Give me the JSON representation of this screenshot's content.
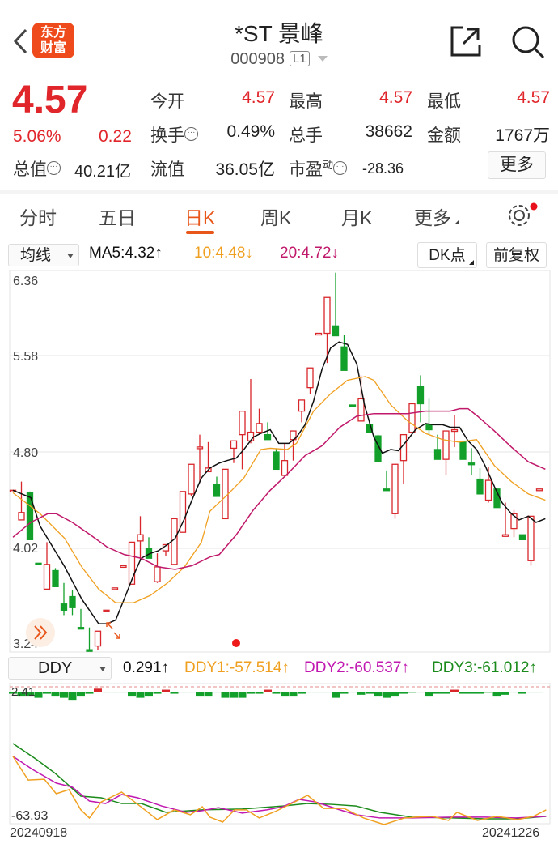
{
  "header": {
    "title": "*ST 景峰",
    "code": "000908",
    "level": "L1",
    "logo_text": [
      "东方",
      "财富"
    ]
  },
  "quote": {
    "price": "4.57",
    "change_pct": "5.06%",
    "change": "0.22",
    "open_label": "今开",
    "open": "4.57",
    "high_label": "最高",
    "high": "4.57",
    "low_label": "最低",
    "low": "4.57",
    "turnover_label": "换手",
    "turnover": "0.49%",
    "volume_label": "总手",
    "volume": "38662",
    "amount_label": "金额",
    "amount": "1767万",
    "mcap_label": "总值",
    "mcap": "40.21亿",
    "float_label": "流值",
    "float_cap": "36.05亿",
    "pe_label": "市盈",
    "pe_sup": "动",
    "pe": "-28.36",
    "more_label": "更多"
  },
  "tabs": [
    {
      "label": "分时"
    },
    {
      "label": "五日"
    },
    {
      "label": "日K",
      "active": true
    },
    {
      "label": "周K"
    },
    {
      "label": "月K"
    },
    {
      "label": "更多"
    }
  ],
  "indicator_bar": {
    "ma_select": "均线",
    "ma5": "MA5:4.32↑",
    "ma10": "10:4.48↓",
    "ma20": "20:4.72↓",
    "dk_label": "DK点",
    "adjust_label": "前复权"
  },
  "ddy_bar": {
    "select": "DDY",
    "ddy": "0.291↑",
    "ddy1": "DDY1:-57.514↑",
    "ddy2": "DDY2:-60.537↑",
    "ddy3": "DDY3:-61.012↑"
  },
  "dates": {
    "start": "20240918",
    "end": "20241226"
  },
  "colors": {
    "up": "#d8262b",
    "down": "#13a02a",
    "ma5": "#111111",
    "ma10": "#f0a020",
    "ma20": "#c0186a",
    "ddy1": "#f0a020",
    "ddy2": "#c018b0",
    "ddy3": "#1a8a1a",
    "accent": "#e8561a"
  },
  "chart_data": [
    {
      "type": "candlestick",
      "title": "日K",
      "y_ticks": [
        "6.36",
        "5.58",
        "4.80",
        "4.02",
        "3.24"
      ],
      "ylim": [
        3.24,
        6.36
      ],
      "candles": [
        [
          4.48,
          4.49,
          4.49,
          4.48
        ],
        [
          4.25,
          4.31,
          4.56,
          4.25
        ],
        [
          4.47,
          4.09,
          4.48,
          4.09
        ],
        [
          3.9,
          3.89,
          3.9,
          3.89
        ],
        [
          3.69,
          3.89,
          4.07,
          3.69
        ],
        [
          3.84,
          3.71,
          3.86,
          3.71
        ],
        [
          3.57,
          3.52,
          3.74,
          3.48
        ],
        [
          3.63,
          3.54,
          3.68,
          3.48
        ],
        [
          3.38,
          3.37,
          3.53,
          3.37
        ],
        [
          3.2,
          3.19,
          3.38,
          3.19
        ],
        [
          3.23,
          3.35,
          3.35,
          3.2
        ],
        [
          3.51,
          3.52,
          3.52,
          3.51
        ],
        [
          3.69,
          3.7,
          3.7,
          3.69
        ],
        [
          3.87,
          3.88,
          3.88,
          3.87
        ],
        [
          3.73,
          4.07,
          4.07,
          3.73
        ],
        [
          4.08,
          4.13,
          4.28,
          3.92
        ],
        [
          4.02,
          3.94,
          4.11,
          3.94
        ],
        [
          3.75,
          3.87,
          3.98,
          3.74
        ],
        [
          4.0,
          4.05,
          4.05,
          3.96
        ],
        [
          3.89,
          4.26,
          4.26,
          3.89
        ],
        [
          4.15,
          4.48,
          4.48,
          4.15
        ],
        [
          4.46,
          4.7,
          4.7,
          4.44
        ],
        [
          4.83,
          4.84,
          4.94,
          4.55
        ],
        [
          4.64,
          4.67,
          4.88,
          4.64
        ],
        [
          4.54,
          4.44,
          4.6,
          4.44
        ],
        [
          4.26,
          4.66,
          4.66,
          4.26
        ],
        [
          4.83,
          4.89,
          4.89,
          4.71
        ],
        [
          4.94,
          5.13,
          5.13,
          4.66
        ],
        [
          4.89,
          4.96,
          5.39,
          4.87
        ],
        [
          4.96,
          5.03,
          5.15,
          4.94
        ],
        [
          4.94,
          4.9,
          5.04,
          4.9
        ],
        [
          4.8,
          4.66,
          4.83,
          4.66
        ],
        [
          4.61,
          4.73,
          4.87,
          4.61
        ],
        [
          4.9,
          4.97,
          4.97,
          4.73
        ],
        [
          5.13,
          5.22,
          5.22,
          5.04
        ],
        [
          5.32,
          5.48,
          5.48,
          5.27
        ],
        [
          5.75,
          5.76,
          5.76,
          5.75
        ],
        [
          5.76,
          6.05,
          6.05,
          5.52
        ],
        [
          5.82,
          5.74,
          6.25,
          5.74
        ],
        [
          5.65,
          5.46,
          5.75,
          5.46
        ],
        [
          5.18,
          5.17,
          5.18,
          5.17
        ],
        [
          5.05,
          5.23,
          5.42,
          5.05
        ],
        [
          5.02,
          4.96,
          5.06,
          4.96
        ],
        [
          4.93,
          4.72,
          4.94,
          4.72
        ],
        [
          4.5,
          4.49,
          4.65,
          4.49
        ],
        [
          4.3,
          4.7,
          4.7,
          4.26
        ],
        [
          4.73,
          4.94,
          4.94,
          4.54
        ],
        [
          4.96,
          5.19,
          5.19,
          5.0
        ],
        [
          5.33,
          5.19,
          5.42,
          5.04
        ],
        [
          5.02,
          4.98,
          5.23,
          4.94
        ],
        [
          4.82,
          4.74,
          4.94,
          4.74
        ],
        [
          4.74,
          4.97,
          4.97,
          4.61
        ],
        [
          4.98,
          4.98,
          5.1,
          4.84
        ],
        [
          4.88,
          4.74,
          4.88,
          4.74
        ],
        [
          4.71,
          4.7,
          4.83,
          4.61
        ],
        [
          4.58,
          4.46,
          4.67,
          4.46
        ],
        [
          4.41,
          4.57,
          4.68,
          4.39
        ],
        [
          4.5,
          4.35,
          4.5,
          4.35
        ],
        [
          4.12,
          4.13,
          4.39,
          4.12
        ],
        [
          4.18,
          4.3,
          4.33,
          4.11
        ],
        [
          4.13,
          4.09,
          4.13,
          4.09
        ],
        [
          3.92,
          4.28,
          4.28,
          3.88
        ],
        [
          4.49,
          4.5,
          4.5,
          4.49
        ]
      ],
      "ma5": [
        [
          0,
          4.49
        ],
        [
          2.1,
          4.43
        ],
        [
          3.2,
          4.2
        ],
        [
          6.1,
          3.87
        ],
        [
          8.1,
          3.61
        ],
        [
          10.1,
          3.41
        ],
        [
          11.1,
          3.41
        ],
        [
          12.1,
          3.44
        ],
        [
          13.1,
          3.61
        ],
        [
          14.2,
          3.8
        ],
        [
          15.1,
          3.94
        ],
        [
          16.2,
          3.98
        ],
        [
          17.1,
          4.0
        ],
        [
          18.2,
          4.05
        ],
        [
          19.1,
          4.1
        ],
        [
          20.2,
          4.26
        ],
        [
          21.2,
          4.43
        ],
        [
          22.2,
          4.59
        ],
        [
          23.2,
          4.67
        ],
        [
          24.3,
          4.71
        ],
        [
          25.2,
          4.73
        ],
        [
          26.3,
          4.75
        ],
        [
          27.2,
          4.82
        ],
        [
          28.3,
          4.92
        ],
        [
          29.2,
          4.95
        ],
        [
          30.3,
          4.98
        ],
        [
          31.3,
          4.87
        ],
        [
          32.5,
          4.87
        ],
        [
          33.4,
          4.92
        ],
        [
          34.4,
          5.02
        ],
        [
          35.4,
          5.21
        ],
        [
          36.4,
          5.47
        ],
        [
          37.4,
          5.64
        ],
        [
          38.4,
          5.69
        ],
        [
          39.4,
          5.67
        ],
        [
          40.5,
          5.51
        ],
        [
          41.4,
          5.18
        ],
        [
          42.5,
          4.92
        ],
        [
          43.5,
          4.79
        ],
        [
          44.5,
          4.82
        ],
        [
          45.4,
          4.81
        ],
        [
          46.5,
          4.9
        ],
        [
          47.4,
          4.98
        ],
        [
          48.6,
          5.03
        ],
        [
          49.5,
          5.02
        ],
        [
          50.6,
          5.02
        ],
        [
          51.5,
          5.0
        ],
        [
          52.6,
          5.0
        ],
        [
          53.6,
          4.89
        ],
        [
          54.6,
          4.82
        ],
        [
          55.6,
          4.69
        ],
        [
          56.7,
          4.52
        ],
        [
          57.6,
          4.39
        ],
        [
          58.7,
          4.3
        ],
        [
          59.6,
          4.25
        ],
        [
          60.7,
          4.28
        ],
        [
          61.6,
          4.23
        ],
        [
          62.7,
          4.26
        ]
      ],
      "ma10": [
        [
          0,
          4.47
        ],
        [
          3.2,
          4.3
        ],
        [
          6.1,
          4.1
        ],
        [
          8.1,
          3.87
        ],
        [
          10.1,
          3.69
        ],
        [
          12.1,
          3.58
        ],
        [
          14.2,
          3.58
        ],
        [
          16.2,
          3.64
        ],
        [
          18.2,
          3.74
        ],
        [
          20.2,
          3.87
        ],
        [
          22.2,
          4.07
        ],
        [
          23.2,
          4.32
        ],
        [
          25.2,
          4.45
        ],
        [
          27.2,
          4.59
        ],
        [
          29.2,
          4.82
        ],
        [
          30.3,
          4.83
        ],
        [
          32.3,
          4.82
        ],
        [
          33.4,
          4.87
        ],
        [
          35.4,
          5.13
        ],
        [
          37.4,
          5.27
        ],
        [
          39.4,
          5.38
        ],
        [
          41.5,
          5.41
        ],
        [
          42.5,
          5.38
        ],
        [
          44.5,
          5.18
        ],
        [
          46.5,
          5.05
        ],
        [
          48.6,
          4.95
        ],
        [
          50.6,
          4.9
        ],
        [
          52.5,
          4.88
        ],
        [
          54.6,
          4.9
        ],
        [
          56.7,
          4.69
        ],
        [
          58.7,
          4.56
        ],
        [
          60.7,
          4.46
        ],
        [
          62.7,
          4.41
        ]
      ],
      "ma20": [
        [
          0,
          4.11
        ],
        [
          2.1,
          4.23
        ],
        [
          4.1,
          4.3
        ],
        [
          5.1,
          4.3
        ],
        [
          7,
          4.23
        ],
        [
          9.1,
          4.13
        ],
        [
          11.1,
          4.03
        ],
        [
          13.1,
          3.97
        ],
        [
          15.1,
          3.94
        ],
        [
          17.1,
          3.87
        ],
        [
          19.1,
          3.85
        ],
        [
          21.1,
          3.88
        ],
        [
          23.2,
          3.95
        ],
        [
          24.3,
          3.97
        ],
        [
          26.3,
          4.13
        ],
        [
          28.3,
          4.33
        ],
        [
          30.3,
          4.49
        ],
        [
          32.3,
          4.62
        ],
        [
          34.4,
          4.77
        ],
        [
          36.4,
          4.85
        ],
        [
          38.5,
          5.0
        ],
        [
          40.5,
          5.09
        ],
        [
          42.5,
          5.11
        ],
        [
          46.5,
          5.11
        ],
        [
          48.6,
          5.13
        ],
        [
          51.5,
          5.13
        ],
        [
          52.6,
          5.15
        ],
        [
          53.6,
          5.15
        ],
        [
          54.7,
          5.09
        ],
        [
          56.7,
          4.97
        ],
        [
          58.7,
          4.84
        ],
        [
          60.7,
          4.72
        ],
        [
          62.7,
          4.66
        ]
      ]
    },
    {
      "type": "line",
      "title": "DDY",
      "y_ticks": [
        "2.41",
        "-63.93"
      ],
      "ylim": [
        -63.93,
        2.41
      ],
      "bars": [
        -1,
        -2,
        -2,
        -3,
        -1,
        -2,
        -3,
        -4,
        -2,
        -1,
        1.5,
        -0.3,
        -0.3,
        -0.3,
        -2,
        -3,
        -2,
        -1,
        1,
        -1,
        -0.3,
        -0.3,
        -2,
        -2,
        -0.3,
        -3,
        -3,
        -3,
        -1,
        -1,
        1,
        -1,
        -2,
        -2,
        -1,
        -0.3,
        -0.3,
        -0.3,
        -3,
        -1,
        -0.3,
        -1.5,
        -1,
        -2,
        -3,
        -2,
        -1,
        -0.5,
        -0.3,
        -2,
        -1,
        -1,
        1,
        -1,
        -1,
        -1,
        -0.5,
        -2,
        -1.5,
        -0.3,
        -1,
        -0.3,
        -0.3
      ],
      "ddy1": [
        [
          0,
          -31.7
        ],
        [
          1.8,
          -43.3
        ],
        [
          3.7,
          -42.9
        ],
        [
          5.1,
          -50.0
        ],
        [
          6.6,
          -48.0
        ],
        [
          8,
          -57.9
        ],
        [
          9,
          -61.9
        ],
        [
          10.4,
          -54.0
        ],
        [
          12.8,
          -49.2
        ],
        [
          14.7,
          -55.2
        ],
        [
          17,
          -62.7
        ],
        [
          19,
          -57.9
        ],
        [
          20.9,
          -60.3
        ],
        [
          22.3,
          -56.4
        ],
        [
          23.2,
          -61.5
        ],
        [
          24.7,
          -63.9
        ],
        [
          26.1,
          -57.9
        ],
        [
          27.5,
          -57.9
        ],
        [
          29,
          -61.9
        ],
        [
          30.9,
          -58.7
        ],
        [
          32.8,
          -54.8
        ],
        [
          34.7,
          -50.8
        ],
        [
          36.6,
          -57.2
        ],
        [
          39,
          -57.2
        ],
        [
          41.3,
          -61.9
        ],
        [
          43.7,
          -65.1
        ],
        [
          46.1,
          -61.9
        ],
        [
          47.5,
          -61.5
        ],
        [
          49.4,
          -61.1
        ],
        [
          51.3,
          -63.1
        ],
        [
          52.3,
          -59.1
        ],
        [
          54.7,
          -63.1
        ],
        [
          57,
          -61.1
        ],
        [
          59.4,
          -62.7
        ],
        [
          61.3,
          -61.1
        ],
        [
          62.8,
          -57.9
        ]
      ],
      "ddy2": [
        [
          0,
          -31.7
        ],
        [
          2.3,
          -38.1
        ],
        [
          5.1,
          -44.8
        ],
        [
          7,
          -46.8
        ],
        [
          9,
          -53.6
        ],
        [
          10.9,
          -54.8
        ],
        [
          12.8,
          -50.4
        ],
        [
          14.7,
          -52.0
        ],
        [
          17.5,
          -56.0
        ],
        [
          20.4,
          -59.1
        ],
        [
          22.3,
          -58.3
        ],
        [
          24.2,
          -56.8
        ],
        [
          27,
          -59.5
        ],
        [
          29.9,
          -57.9
        ],
        [
          31.8,
          -56.4
        ],
        [
          33.7,
          -52.8
        ],
        [
          35.6,
          -54.0
        ],
        [
          38.5,
          -57.9
        ],
        [
          40.4,
          -60.3
        ],
        [
          43.2,
          -61.9
        ],
        [
          47,
          -61.9
        ],
        [
          51.8,
          -61.5
        ],
        [
          55.6,
          -61.5
        ],
        [
          59.4,
          -61.9
        ],
        [
          62.8,
          -61.1
        ]
      ],
      "ddy3": [
        [
          0,
          -25.4
        ],
        [
          2.8,
          -33.3
        ],
        [
          5,
          -40.1
        ],
        [
          8,
          -51.2
        ],
        [
          10.4,
          -52.0
        ],
        [
          12.8,
          -54.8
        ],
        [
          15.1,
          -54.8
        ],
        [
          18,
          -59.1
        ],
        [
          22.3,
          -57.9
        ],
        [
          27,
          -57.5
        ],
        [
          31.8,
          -56.0
        ],
        [
          34.7,
          -54.8
        ],
        [
          37.5,
          -55.2
        ],
        [
          40.4,
          -56.0
        ],
        [
          43.2,
          -59.1
        ],
        [
          47,
          -61.5
        ],
        [
          51.8,
          -61.9
        ],
        [
          55.6,
          -62.3
        ],
        [
          59.4,
          -62.3
        ],
        [
          62.8,
          -61.1
        ]
      ]
    }
  ]
}
